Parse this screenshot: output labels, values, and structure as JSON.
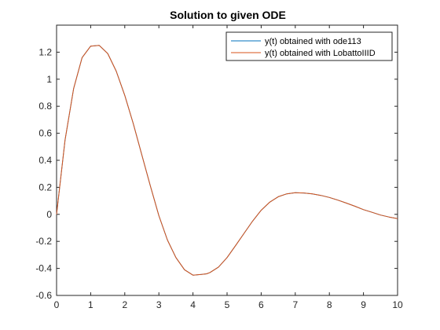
{
  "chart_data": {
    "type": "line",
    "title": "Solution to given ODE",
    "xlabel": "",
    "ylabel": "",
    "xlim": [
      0,
      10
    ],
    "ylim": [
      -0.6,
      1.4
    ],
    "xticks": [
      0,
      1,
      2,
      3,
      4,
      5,
      6,
      7,
      8,
      9,
      10
    ],
    "yticks": [
      -0.6,
      -0.4,
      -0.2,
      0,
      0.2,
      0.4,
      0.6,
      0.8,
      1,
      1.2
    ],
    "xtick_labels": [
      "0",
      "1",
      "2",
      "3",
      "4",
      "5",
      "6",
      "7",
      "8",
      "9",
      "10"
    ],
    "ytick_labels": [
      "-0.6",
      "-0.4",
      "-0.2",
      "0",
      "0.2",
      "0.4",
      "0.6",
      "0.8",
      "1",
      "1.2"
    ],
    "grid": false,
    "legend_position": "top-right",
    "series": [
      {
        "name": "y(t) obtained with ode113",
        "color": "#0072BD",
        "x": [
          0,
          0.25,
          0.5,
          0.75,
          1.0,
          1.25,
          1.5,
          1.75,
          2.0,
          2.25,
          2.5,
          2.75,
          3.0,
          3.25,
          3.5,
          3.75,
          4.0,
          4.25,
          4.4,
          4.5,
          4.75,
          5.0,
          5.25,
          5.5,
          5.75,
          6.0,
          6.25,
          6.5,
          6.75,
          7.0,
          7.25,
          7.5,
          7.75,
          8.0,
          8.25,
          8.5,
          8.75,
          9.0,
          9.25,
          9.5,
          9.75,
          10.0
        ],
        "y": [
          0.0,
          0.55,
          0.93,
          1.16,
          1.245,
          1.25,
          1.19,
          1.06,
          0.88,
          0.67,
          0.44,
          0.21,
          -0.01,
          -0.19,
          -0.32,
          -0.41,
          -0.45,
          -0.445,
          -0.44,
          -0.43,
          -0.39,
          -0.32,
          -0.23,
          -0.14,
          -0.05,
          0.03,
          0.09,
          0.13,
          0.152,
          0.16,
          0.158,
          0.152,
          0.14,
          0.125,
          0.105,
          0.083,
          0.06,
          0.035,
          0.015,
          -0.005,
          -0.02,
          -0.032
        ]
      },
      {
        "name": "y(t) obtained with LobattoIIID",
        "color": "#D95319",
        "x": [
          0,
          0.25,
          0.5,
          0.75,
          1.0,
          1.25,
          1.5,
          1.75,
          2.0,
          2.25,
          2.5,
          2.75,
          3.0,
          3.25,
          3.5,
          3.75,
          4.0,
          4.25,
          4.4,
          4.5,
          4.75,
          5.0,
          5.25,
          5.5,
          5.75,
          6.0,
          6.25,
          6.5,
          6.75,
          7.0,
          7.25,
          7.5,
          7.75,
          8.0,
          8.25,
          8.5,
          8.75,
          9.0,
          9.25,
          9.5,
          9.75,
          10.0
        ],
        "y": [
          0.0,
          0.55,
          0.93,
          1.16,
          1.245,
          1.25,
          1.19,
          1.06,
          0.88,
          0.67,
          0.44,
          0.21,
          -0.01,
          -0.19,
          -0.32,
          -0.41,
          -0.45,
          -0.445,
          -0.44,
          -0.43,
          -0.39,
          -0.32,
          -0.23,
          -0.14,
          -0.05,
          0.03,
          0.09,
          0.13,
          0.152,
          0.16,
          0.158,
          0.152,
          0.14,
          0.125,
          0.105,
          0.083,
          0.06,
          0.035,
          0.015,
          -0.005,
          -0.02,
          -0.032
        ]
      }
    ]
  }
}
